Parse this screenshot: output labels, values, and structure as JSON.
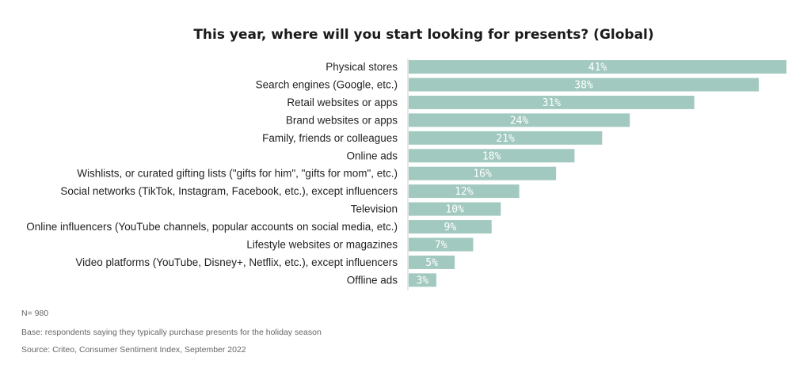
{
  "chart_data": {
    "type": "bar",
    "orientation": "horizontal",
    "title": "This year, where will you start looking for presents? (Global)",
    "categories": [
      "Physical stores",
      "Search engines (Google, etc.)",
      "Retail websites or apps",
      "Brand websites or apps",
      "Family, friends or colleagues",
      "Online ads",
      "Wishlists, or curated gifting lists (\"gifts for him\", \"gifts for mom\", etc.)",
      "Social networks (TikTok, Instagram, Facebook, etc.), except influencers",
      "Television",
      "Online influencers (YouTube channels, popular accounts on social media, etc.)",
      "Lifestyle websites or magazines",
      "Video platforms (YouTube, Disney+, Netflix, etc.), except influencers",
      "Offline ads"
    ],
    "values": [
      41,
      38,
      31,
      24,
      21,
      18,
      16,
      12,
      10,
      9,
      7,
      5,
      3
    ],
    "value_labels": [
      "41%",
      "38%",
      "31%",
      "24%",
      "21%",
      "18%",
      "16%",
      "12%",
      "10%",
      "9%",
      "7%",
      "5%",
      "3%"
    ],
    "unit": "%",
    "xlim": [
      0,
      41
    ],
    "grid": false,
    "bar_color": "#a2c9bf"
  },
  "footnotes": {
    "n": "N= 980",
    "base": "Base: respondents saying they typically purchase presents for the holiday season",
    "source": "Source: Criteo, Consumer Sentiment Index, September 2022"
  }
}
